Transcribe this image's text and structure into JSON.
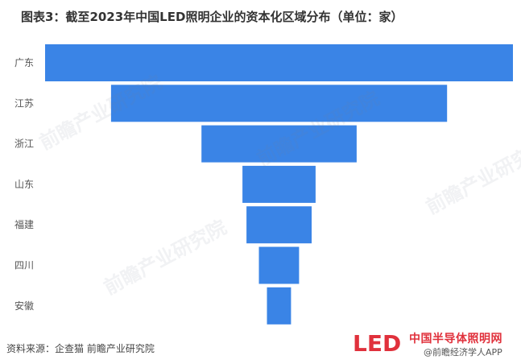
{
  "title": "图表3：截至2023年中国LED照明企业的资本化区域分布（单位：家）",
  "source": "资料来源：企查猫 前瞻产业研究院",
  "brand": {
    "name": "中国半导体照明网",
    "sub": "@前瞻经济学人APP",
    "logo_text": "LED"
  },
  "watermark": "前瞻产业研究院",
  "colors": {
    "bar": "#3a84e6",
    "brand_red": "#e0313c"
  },
  "chart_data": {
    "type": "bar",
    "orientation": "horizontal-funnel",
    "categories": [
      "广东",
      "江苏",
      "浙江",
      "山东",
      "福建",
      "四川",
      "安徽"
    ],
    "values": [
      582,
      418,
      193,
      91,
      81,
      50,
      30
    ],
    "title": "图表3：截至2023年中国LED照明企业的资本化区域分布（单位：家）",
    "xlabel": "",
    "ylabel": "",
    "grid": false,
    "legend": "none"
  }
}
